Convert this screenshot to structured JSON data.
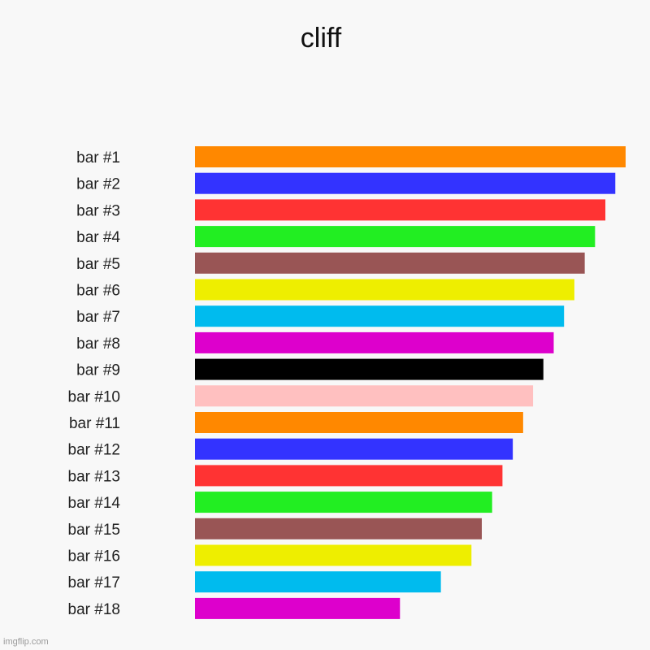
{
  "chart_data": {
    "type": "bar",
    "orientation": "horizontal",
    "title": "cliff",
    "xlabel": "",
    "ylabel": "",
    "grid": false,
    "xlim": [
      0,
      100
    ],
    "categories": [
      "bar #1",
      "bar #2",
      "bar #3",
      "bar #4",
      "bar #5",
      "bar #6",
      "bar #7",
      "bar #8",
      "bar #9",
      "bar #10",
      "bar #11",
      "bar #12",
      "bar #13",
      "bar #14",
      "bar #15",
      "bar #16",
      "bar #17",
      "bar #18"
    ],
    "values": [
      100,
      97.6,
      95.3,
      92.9,
      90.5,
      88.1,
      85.7,
      83.3,
      80.9,
      78.5,
      76.2,
      73.8,
      71.4,
      69.0,
      66.6,
      64.2,
      57.1,
      47.6
    ],
    "colors": [
      "#ff8800",
      "#3333ff",
      "#ff3333",
      "#22ee22",
      "#995555",
      "#eeee00",
      "#00bbee",
      "#dd00cc",
      "#000000",
      "#ffc0c0",
      "#ff8800",
      "#3333ff",
      "#ff3333",
      "#22ee22",
      "#995555",
      "#eeee00",
      "#00bbee",
      "#dd00cc"
    ]
  },
  "watermark": "imgflip.com"
}
